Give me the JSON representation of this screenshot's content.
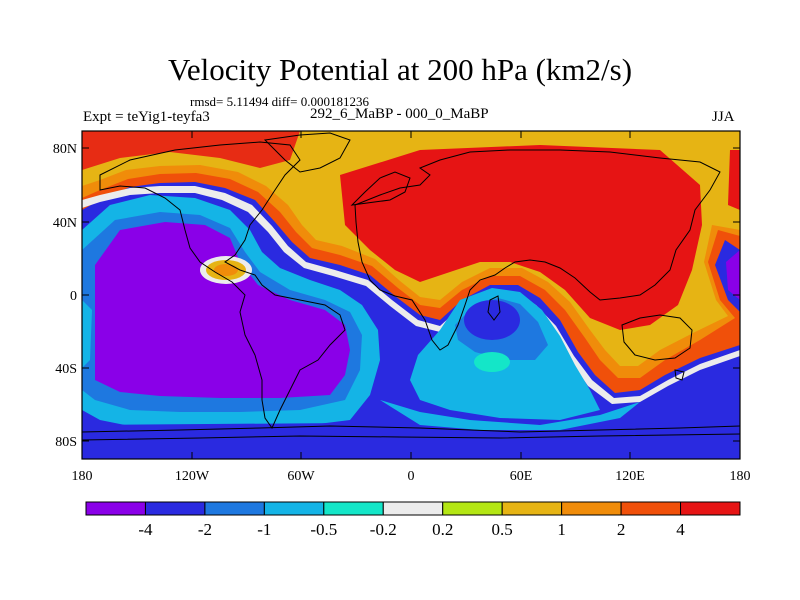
{
  "title": "Velocity Potential at 200 hPa (km2/s)",
  "stats_line": "rmsd= 5.11494 diff= 0.000181236",
  "experiment_label": "Expt = teYig1-teyfa3",
  "case_label": "292_6_MaBP - 000_0_MaBP",
  "season_label": "JJA",
  "latitude_ticks": [
    "80N",
    "40N",
    "0",
    "40S",
    "80S"
  ],
  "longitude_ticks": [
    "180",
    "120W",
    "60W",
    "0",
    "60E",
    "120E",
    "180"
  ],
  "colorbar": {
    "colors": [
      "#8a00e8",
      "#2a2ae0",
      "#1e78e0",
      "#14b4e6",
      "#14e6c8",
      "#ececec",
      "#b4e614",
      "#e6b414",
      "#f08c0a",
      "#f0500a",
      "#e61414"
    ],
    "labels": [
      "-4",
      "-2",
      "-1",
      "-0.5",
      "-0.2",
      "0.2",
      "0.5",
      "1",
      "2",
      "4"
    ]
  }
}
